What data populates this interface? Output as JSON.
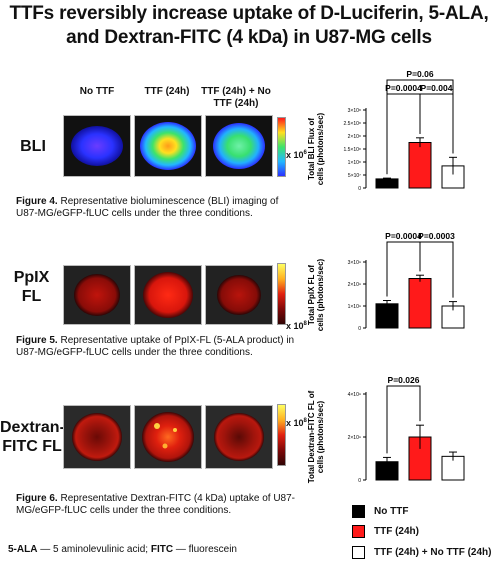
{
  "title": "TTFs reversibly increase uptake of D-Luciferin, 5-ALA, and Dextran-FITC (4 kDa) in U87-MG cells",
  "column_headers": [
    "No TTF",
    "TTF (24h)",
    "TTF (24h) + No TTF (24h)"
  ],
  "rows": [
    {
      "label": "BLI",
      "scale_label": "x 10",
      "scale_exp": "6",
      "caption_fig": "Figure 4.",
      "caption_text": "Representative bioluminescence (BLI) imaging of U87-MG/eGFP-fLUC cells under the three conditions."
    },
    {
      "label": "PpIX FL",
      "scale_label": "x 10",
      "scale_exp": "8",
      "caption_fig": "Figure 5.",
      "caption_text": "Representative uptake of PpIX-FL (5-ALA product) in U87-MG/eGFP-fLUC cells under the three conditions."
    },
    {
      "label": "Dextran-FITC FL",
      "scale_label": "x 10",
      "scale_exp": "8",
      "caption_fig": "Figure 6.",
      "caption_text": "Representative Dextran-FITC (4 kDa) uptake of U87-MG/eGFP-fLUC cells under the three conditions."
    }
  ],
  "legend": [
    {
      "label": "No TTF",
      "color": "#000000"
    },
    {
      "label": "TTF (24h)",
      "color": "#ff1a1a"
    },
    {
      "label": "TTF (24h) + No TTF (24h)",
      "color": "#ffffff"
    }
  ],
  "footnote_bold1": "5-ALA",
  "footnote_text1": " — 5 aminolevulinic acid; ",
  "footnote_bold2": "FITC",
  "footnote_text2": " — fluorescein",
  "chart_data": [
    {
      "type": "bar",
      "ylabel": "Total BLI Flux of cells (photons/sec)",
      "categories": [
        "No TTF",
        "TTF (24h)",
        "TTF (24h) + No TTF (24h)"
      ],
      "values": [
        0.35,
        1.75,
        0.85
      ],
      "errors": [
        0.03,
        0.18,
        0.33
      ],
      "ylim": [
        0,
        3
      ],
      "yticks": [
        "0",
        "5×10⁷",
        "1×10⁸",
        "1.5×10⁸",
        "2×10⁸",
        "2.5×10⁸",
        "3×10⁸"
      ],
      "colors": [
        "#000000",
        "#ff1a1a",
        "#ffffff"
      ],
      "annotations": [
        {
          "text": "P=0.06",
          "from": 0,
          "to": 2
        },
        {
          "text": "P=0.0004",
          "from": 0,
          "to": 1
        },
        {
          "text": "P=0.004",
          "from": 1,
          "to": 2
        }
      ]
    },
    {
      "type": "bar",
      "ylabel": "Total PpIX FL of cells (photons/sec)",
      "categories": [
        "No TTF",
        "TTF (24h)",
        "TTF (24h) + No TTF (24h)"
      ],
      "values": [
        1.1,
        2.25,
        1.0
      ],
      "errors": [
        0.15,
        0.15,
        0.2
      ],
      "ylim": [
        0,
        3
      ],
      "yticks": [
        "0",
        "1×10⁹",
        "2×10⁹",
        "3×10⁹"
      ],
      "colors": [
        "#000000",
        "#ff1a1a",
        "#ffffff"
      ],
      "annotations": [
        {
          "text": "P=0.0004",
          "from": 0,
          "to": 1
        },
        {
          "text": "P=0.0003",
          "from": 1,
          "to": 2
        }
      ]
    },
    {
      "type": "bar",
      "ylabel": "Total Dextran-FITC FL of cells (photons/sec)",
      "categories": [
        "No TTF",
        "TTF (24h)",
        "TTF (24h) + No TTF (24h)"
      ],
      "values": [
        0.85,
        2.0,
        1.1
      ],
      "errors": [
        0.2,
        0.55,
        0.2
      ],
      "ylim": [
        0,
        4
      ],
      "yticks": [
        "0",
        "2×10⁹",
        "4×10⁹"
      ],
      "colors": [
        "#000000",
        "#ff1a1a",
        "#ffffff"
      ],
      "annotations": [
        {
          "text": "P=0.026",
          "from": 0,
          "to": 1
        }
      ]
    }
  ]
}
